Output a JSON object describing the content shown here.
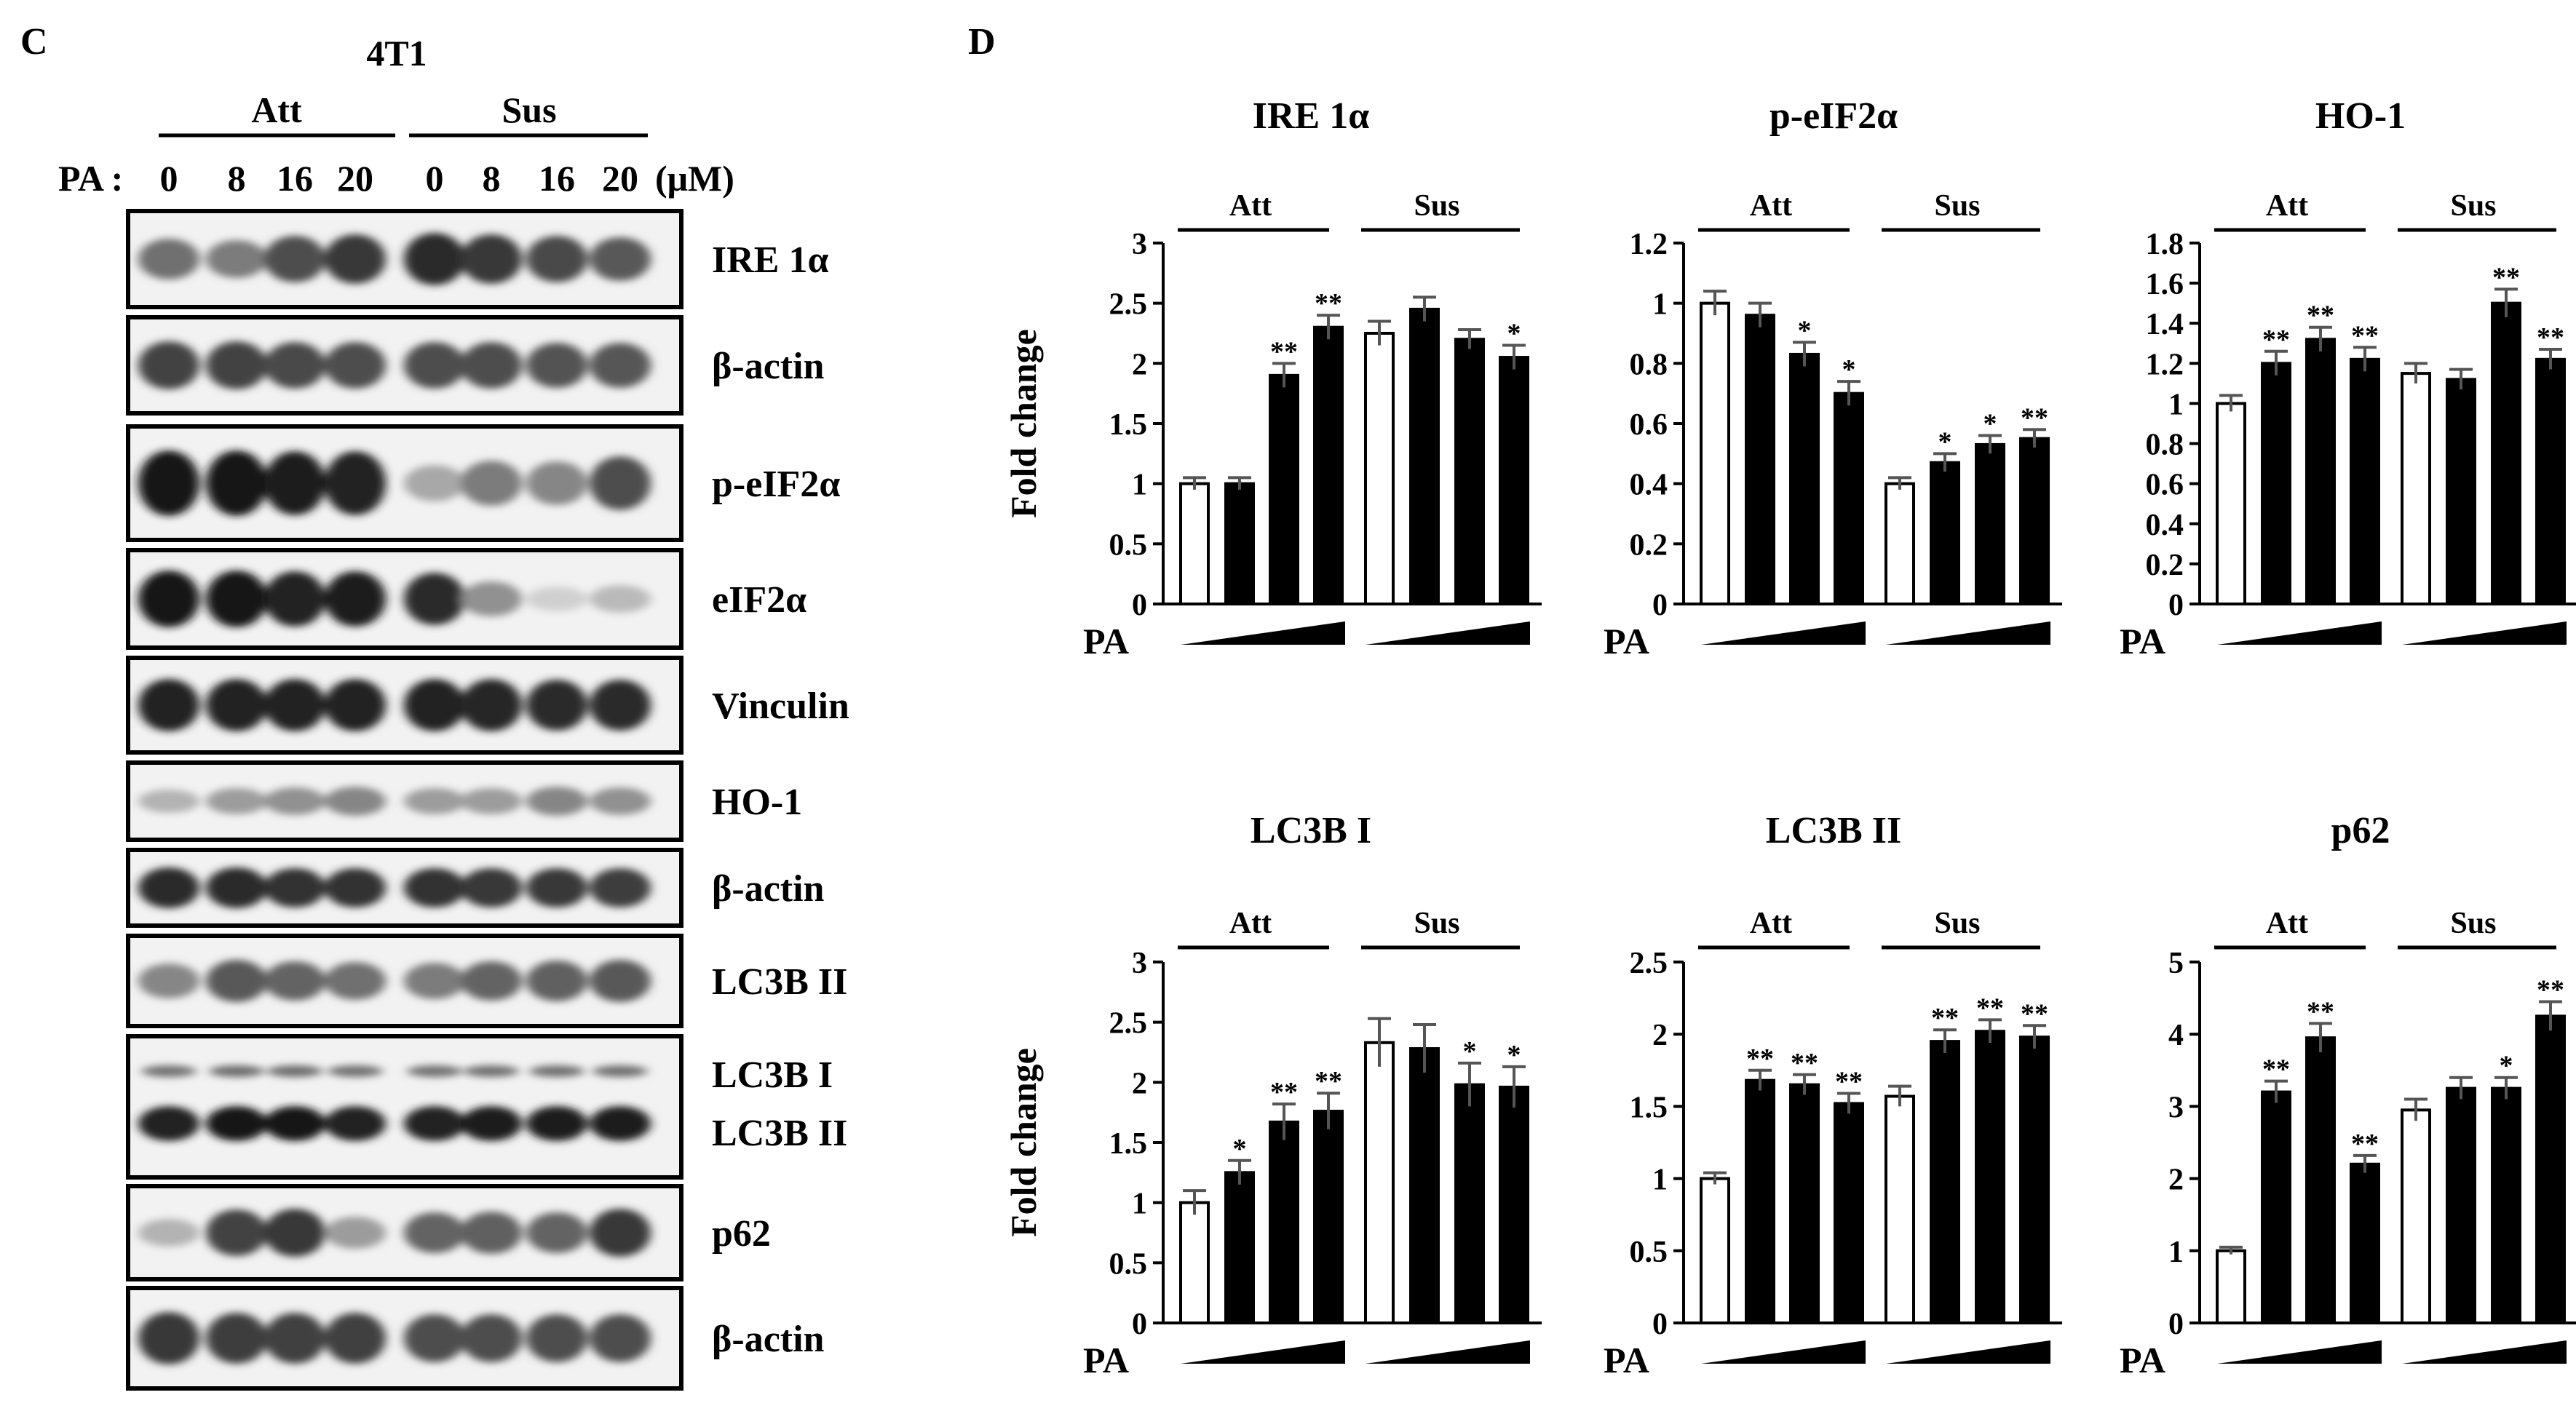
{
  "panels": {
    "left_label": "C",
    "right_label": "D"
  },
  "blot": {
    "cell_line": "4T1",
    "groups": [
      "Att",
      "Sus"
    ],
    "pa_label": "PA :",
    "unit": "(μM)",
    "doses": [
      "0",
      "8",
      "16",
      "20",
      "0",
      "8",
      "16",
      "20"
    ],
    "strips": [
      {
        "label": "IRE 1α",
        "intensity": [
          0.55,
          0.5,
          0.7,
          0.8,
          0.85,
          0.8,
          0.72,
          0.65
        ]
      },
      {
        "label": "β-actin",
        "intensity": [
          0.75,
          0.75,
          0.72,
          0.7,
          0.7,
          0.7,
          0.68,
          0.66
        ]
      },
      {
        "label": "p-eIF2α",
        "intensity": [
          0.95,
          0.95,
          0.92,
          0.9,
          0.3,
          0.5,
          0.45,
          0.7
        ]
      },
      {
        "label": "eIF2α",
        "intensity": [
          0.95,
          0.95,
          0.9,
          0.92,
          0.85,
          0.4,
          0.12,
          0.22
        ]
      },
      {
        "label": "Vinculin",
        "intensity": [
          0.9,
          0.9,
          0.9,
          0.9,
          0.9,
          0.88,
          0.85,
          0.85
        ]
      },
      {
        "label": "HO-1",
        "intensity": [
          0.25,
          0.35,
          0.4,
          0.45,
          0.35,
          0.35,
          0.45,
          0.4
        ]
      },
      {
        "label": "β-actin",
        "intensity": [
          0.85,
          0.85,
          0.82,
          0.82,
          0.82,
          0.8,
          0.8,
          0.78
        ]
      },
      {
        "label": "LC3B II",
        "intensity": [
          0.45,
          0.65,
          0.6,
          0.55,
          0.5,
          0.6,
          0.62,
          0.65
        ]
      },
      {
        "label": "LC3B I\nLC3B II",
        "intensity": [
          0.9,
          0.95,
          0.95,
          0.9,
          0.9,
          0.92,
          0.92,
          0.92
        ]
      },
      {
        "label": "p62",
        "intensity": [
          0.25,
          0.75,
          0.8,
          0.35,
          0.6,
          0.62,
          0.6,
          0.8
        ]
      },
      {
        "label": "β-actin",
        "intensity": [
          0.8,
          0.78,
          0.76,
          0.76,
          0.7,
          0.7,
          0.7,
          0.7
        ]
      }
    ]
  },
  "chart_data": [
    {
      "type": "bar",
      "title": "IRE 1α",
      "ylabel": "Fold change",
      "xlabel": "PA",
      "groups": [
        "Att",
        "Sus"
      ],
      "ylim": [
        0,
        3
      ],
      "ticks": [
        "0",
        "0.5",
        "1",
        "1.5",
        "2",
        "2.5",
        "3"
      ],
      "values": [
        1.0,
        1.0,
        1.9,
        2.3,
        2.25,
        2.45,
        2.2,
        2.05
      ],
      "errors": [
        0.05,
        0.05,
        0.1,
        0.1,
        0.1,
        0.1,
        0.08,
        0.1
      ],
      "sig": [
        "",
        "",
        "**",
        "**",
        "",
        "",
        "",
        "*"
      ]
    },
    {
      "type": "bar",
      "title": "p-eIF2α",
      "ylabel": "",
      "xlabel": "PA",
      "groups": [
        "Att",
        "Sus"
      ],
      "ylim": [
        0,
        1.2
      ],
      "ticks": [
        "0",
        "0.2",
        "0.4",
        "0.6",
        "0.8",
        "1",
        "1.2"
      ],
      "values": [
        1.0,
        0.96,
        0.83,
        0.7,
        0.4,
        0.47,
        0.53,
        0.55
      ],
      "errors": [
        0.04,
        0.04,
        0.04,
        0.04,
        0.02,
        0.03,
        0.03,
        0.03
      ],
      "sig": [
        "",
        "",
        "*",
        "*",
        "",
        "*",
        "*",
        "**"
      ]
    },
    {
      "type": "bar",
      "title": "HO-1",
      "ylabel": "",
      "xlabel": "PA",
      "groups": [
        "Att",
        "Sus"
      ],
      "ylim": [
        0,
        1.8
      ],
      "ticks": [
        "0",
        "0.2",
        "0.4",
        "0.6",
        "0.8",
        "1",
        "1.2",
        "1.4",
        "1.6",
        "1.8"
      ],
      "values": [
        1.0,
        1.2,
        1.32,
        1.22,
        1.15,
        1.12,
        1.5,
        1.22
      ],
      "errors": [
        0.04,
        0.06,
        0.06,
        0.06,
        0.05,
        0.05,
        0.07,
        0.05
      ],
      "sig": [
        "",
        "**",
        "**",
        "**",
        "",
        "",
        "**",
        "**"
      ]
    },
    {
      "type": "bar",
      "title": "LC3B I",
      "ylabel": "Fold change",
      "xlabel": "PA",
      "groups": [
        "Att",
        "Sus"
      ],
      "ylim": [
        0,
        3
      ],
      "ticks": [
        "0",
        "0.5",
        "1",
        "1.5",
        "2",
        "2.5",
        "3"
      ],
      "values": [
        1.0,
        1.25,
        1.67,
        1.76,
        2.33,
        2.28,
        1.98,
        1.96
      ],
      "errors": [
        0.1,
        0.1,
        0.15,
        0.15,
        0.2,
        0.2,
        0.18,
        0.17
      ],
      "sig": [
        "",
        "*",
        "**",
        "**",
        "",
        "",
        "*",
        "*"
      ]
    },
    {
      "type": "bar",
      "title": "LC3B II",
      "ylabel": "",
      "xlabel": "PA",
      "groups": [
        "Att",
        "Sus"
      ],
      "ylim": [
        0,
        2.5
      ],
      "ticks": [
        "0",
        "0.5",
        "1",
        "1.5",
        "2",
        "2.5"
      ],
      "values": [
        1.0,
        1.68,
        1.65,
        1.52,
        1.57,
        1.95,
        2.02,
        1.98
      ],
      "errors": [
        0.04,
        0.07,
        0.07,
        0.07,
        0.07,
        0.08,
        0.08,
        0.08
      ],
      "sig": [
        "",
        "**",
        "**",
        "**",
        "",
        "**",
        "**",
        "**"
      ]
    },
    {
      "type": "bar",
      "title": "p62",
      "ylabel": "",
      "xlabel": "PA",
      "groups": [
        "Att",
        "Sus"
      ],
      "ylim": [
        0,
        5
      ],
      "ticks": [
        "0",
        "1",
        "2",
        "3",
        "4",
        "5"
      ],
      "values": [
        1.0,
        3.2,
        3.95,
        2.2,
        2.95,
        3.25,
        3.25,
        4.25
      ],
      "errors": [
        0.05,
        0.15,
        0.2,
        0.12,
        0.15,
        0.15,
        0.15,
        0.2
      ],
      "sig": [
        "",
        "**",
        "**",
        "**",
        "",
        "",
        "*",
        "**"
      ]
    }
  ]
}
